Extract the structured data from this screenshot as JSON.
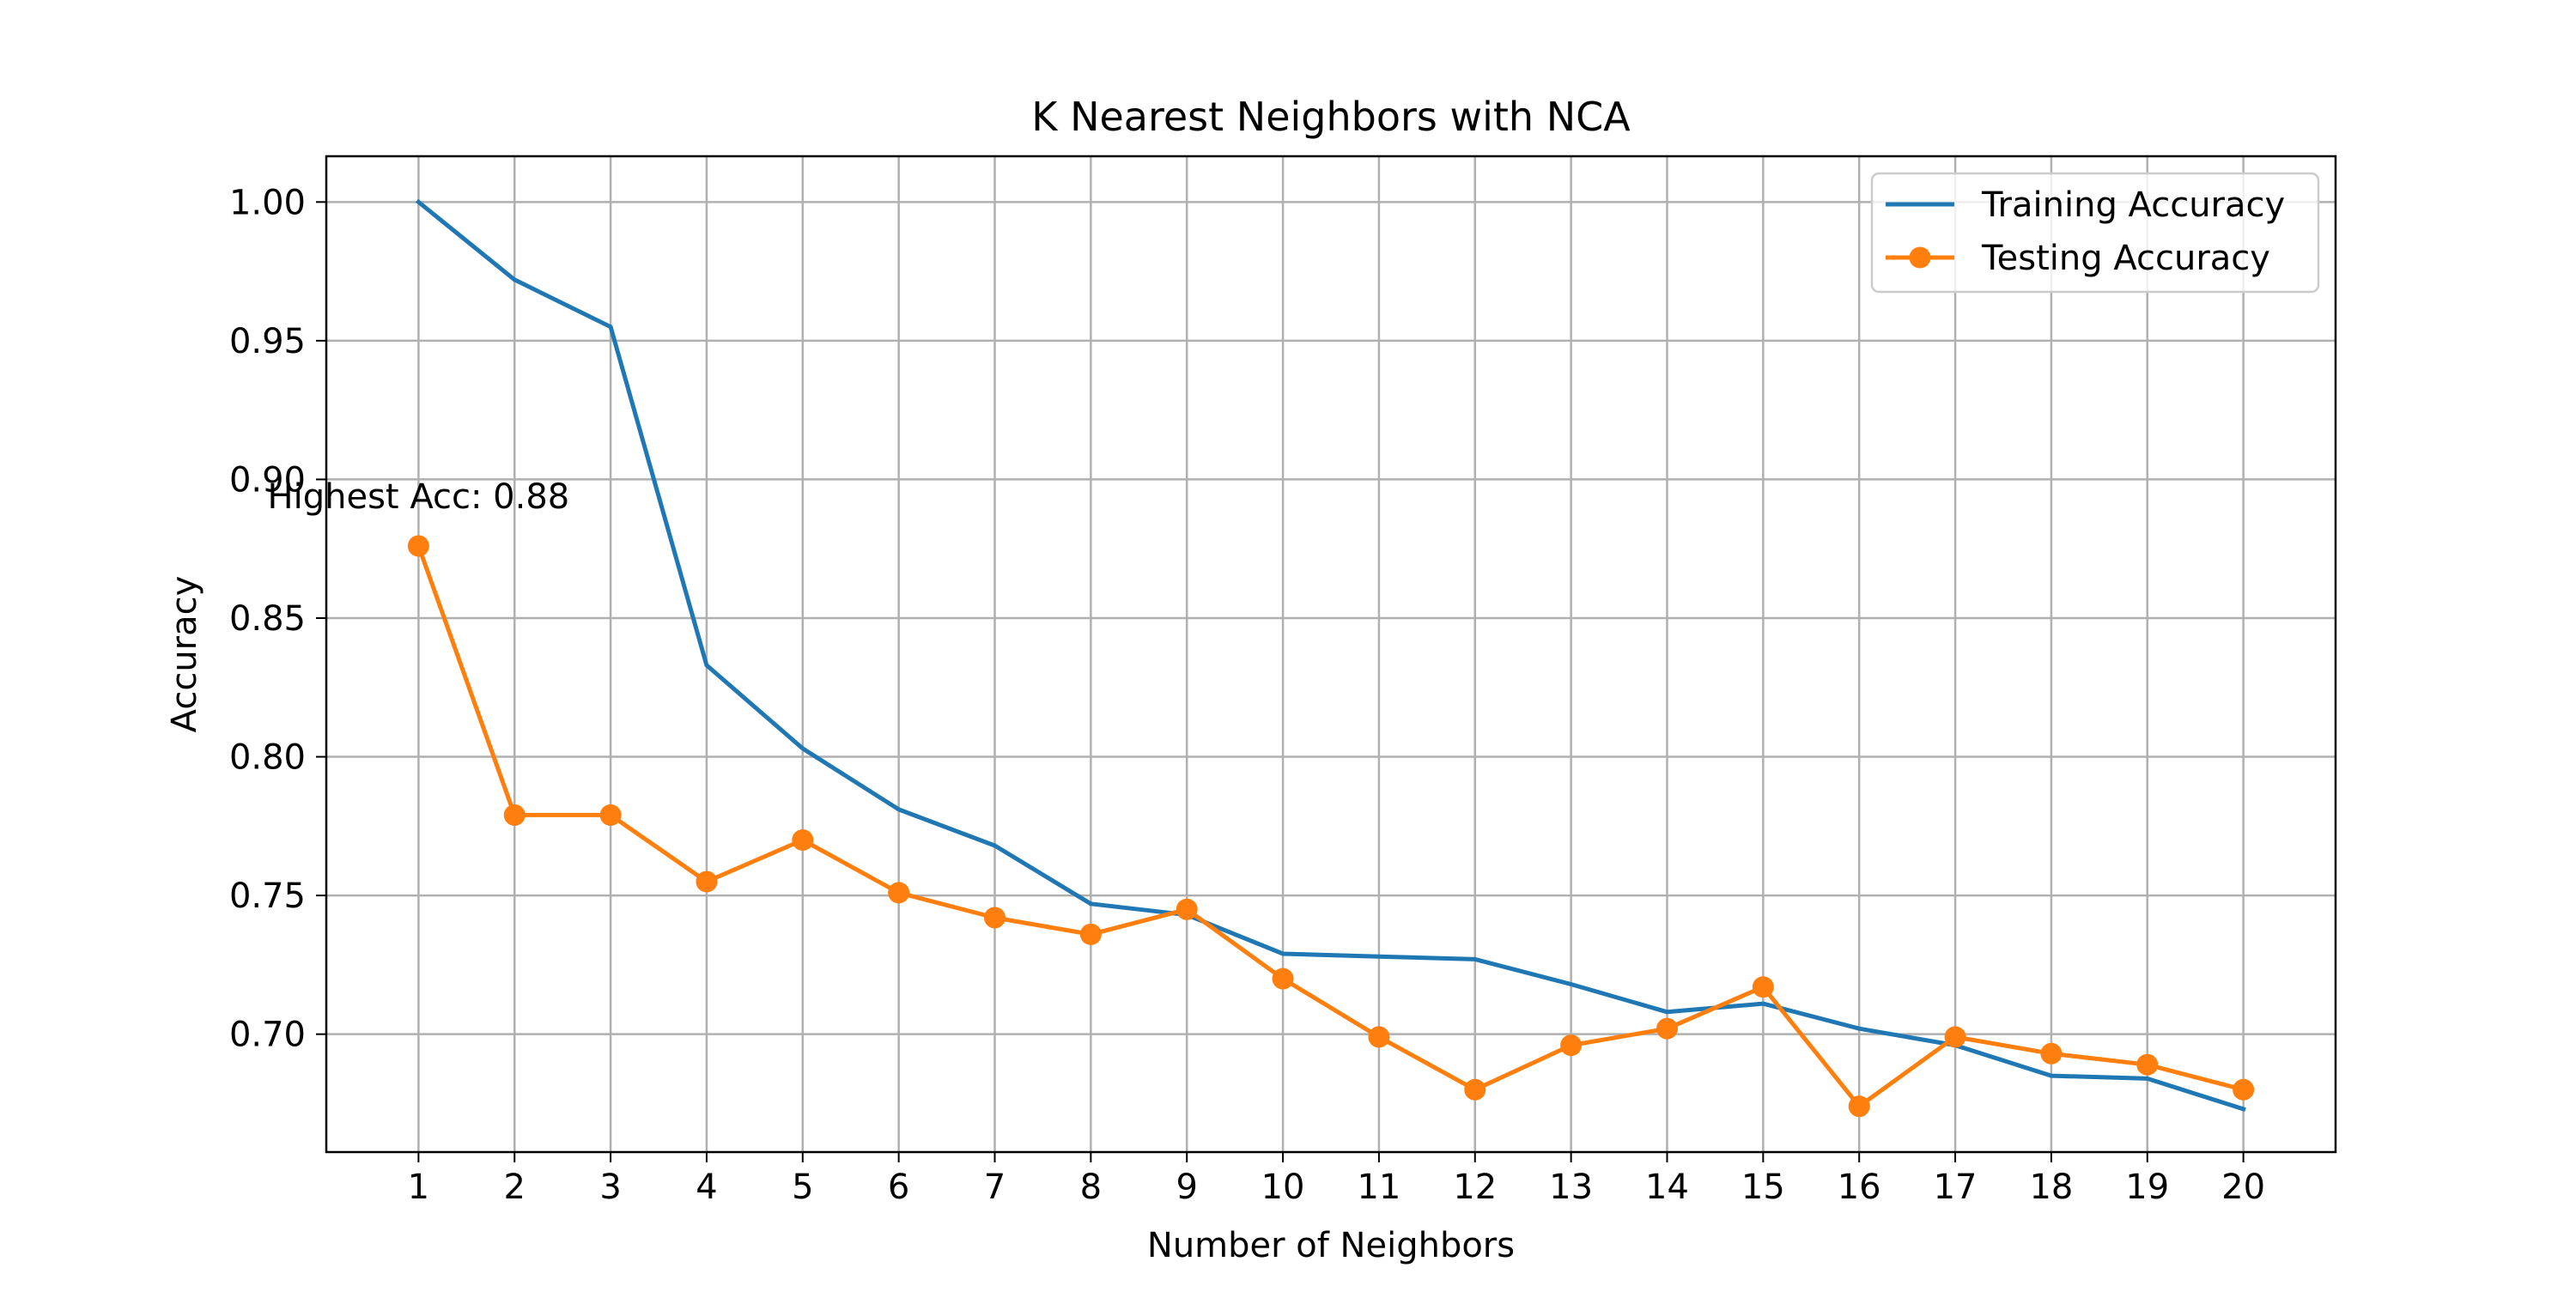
{
  "chart_data": {
    "type": "line",
    "title": "K Nearest Neighbors with NCA",
    "xlabel": "Number of Neighbors",
    "ylabel": "Accuracy",
    "x": [
      1,
      2,
      3,
      4,
      5,
      6,
      7,
      8,
      9,
      10,
      11,
      12,
      13,
      14,
      15,
      16,
      17,
      18,
      19,
      20
    ],
    "xlim": [
      0.04,
      20.96
    ],
    "ylim": [
      0.6575,
      1.0165
    ],
    "y_ticks": [
      0.7,
      0.75,
      0.8,
      0.85,
      0.9,
      0.95,
      1.0
    ],
    "y_tick_labels": [
      "0.70",
      "0.75",
      "0.80",
      "0.85",
      "0.90",
      "0.95",
      "1.00"
    ],
    "grid": true,
    "legend_position": "top-right",
    "series": [
      {
        "name": "Training Accuracy",
        "color": "#1f77b4",
        "marker": "none",
        "values": [
          1.0,
          0.972,
          0.955,
          0.833,
          0.803,
          0.781,
          0.768,
          0.747,
          0.743,
          0.729,
          0.728,
          0.727,
          0.718,
          0.708,
          0.711,
          0.702,
          0.696,
          0.685,
          0.684,
          0.673
        ]
      },
      {
        "name": "Testing Accuracy",
        "color": "#ff7f0e",
        "marker": "circle",
        "values": [
          0.876,
          0.779,
          0.779,
          0.755,
          0.77,
          0.751,
          0.742,
          0.736,
          0.745,
          0.72,
          0.699,
          0.68,
          0.696,
          0.702,
          0.717,
          0.674,
          0.699,
          0.693,
          0.689,
          0.68
        ]
      }
    ],
    "annotations": [
      {
        "text": "Highest Acc: 0.88",
        "x": 1,
        "y": 0.876
      }
    ]
  }
}
